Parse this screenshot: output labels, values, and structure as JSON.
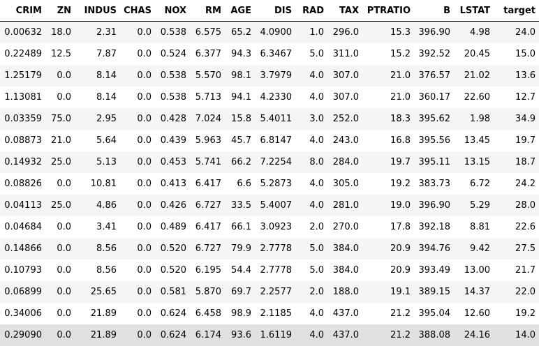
{
  "table": {
    "columns": [
      "CRIM",
      "ZN",
      "INDUS",
      "CHAS",
      "NOX",
      "RM",
      "AGE",
      "DIS",
      "RAD",
      "TAX",
      "PTRATIO",
      "B",
      "LSTAT",
      "target"
    ],
    "rows": [
      [
        "0.00632",
        "18.0",
        "2.31",
        "0.0",
        "0.538",
        "6.575",
        "65.2",
        "4.0900",
        "1.0",
        "296.0",
        "15.3",
        "396.90",
        "4.98",
        "24.0"
      ],
      [
        "0.22489",
        "12.5",
        "7.87",
        "0.0",
        "0.524",
        "6.377",
        "94.3",
        "6.3467",
        "5.0",
        "311.0",
        "15.2",
        "392.52",
        "20.45",
        "15.0"
      ],
      [
        "1.25179",
        "0.0",
        "8.14",
        "0.0",
        "0.538",
        "5.570",
        "98.1",
        "3.7979",
        "4.0",
        "307.0",
        "21.0",
        "376.57",
        "21.02",
        "13.6"
      ],
      [
        "1.13081",
        "0.0",
        "8.14",
        "0.0",
        "0.538",
        "5.713",
        "94.1",
        "4.2330",
        "4.0",
        "307.0",
        "21.0",
        "360.17",
        "22.60",
        "12.7"
      ],
      [
        "0.03359",
        "75.0",
        "2.95",
        "0.0",
        "0.428",
        "7.024",
        "15.8",
        "5.4011",
        "3.0",
        "252.0",
        "18.3",
        "395.62",
        "1.98",
        "34.9"
      ],
      [
        "0.08873",
        "21.0",
        "5.64",
        "0.0",
        "0.439",
        "5.963",
        "45.7",
        "6.8147",
        "4.0",
        "243.0",
        "16.8",
        "395.56",
        "13.45",
        "19.7"
      ],
      [
        "0.14932",
        "25.0",
        "5.13",
        "0.0",
        "0.453",
        "5.741",
        "66.2",
        "7.2254",
        "8.0",
        "284.0",
        "19.7",
        "395.11",
        "13.15",
        "18.7"
      ],
      [
        "0.08826",
        "0.0",
        "10.81",
        "0.0",
        "0.413",
        "6.417",
        "6.6",
        "5.2873",
        "4.0",
        "305.0",
        "19.2",
        "383.73",
        "6.72",
        "24.2"
      ],
      [
        "0.04113",
        "25.0",
        "4.86",
        "0.0",
        "0.426",
        "6.727",
        "33.5",
        "5.4007",
        "4.0",
        "281.0",
        "19.0",
        "396.90",
        "5.29",
        "28.0"
      ],
      [
        "0.04684",
        "0.0",
        "3.41",
        "0.0",
        "0.489",
        "6.417",
        "66.1",
        "3.0923",
        "2.0",
        "270.0",
        "17.8",
        "392.18",
        "8.81",
        "22.6"
      ],
      [
        "0.14866",
        "0.0",
        "8.56",
        "0.0",
        "0.520",
        "6.727",
        "79.9",
        "2.7778",
        "5.0",
        "384.0",
        "20.9",
        "394.76",
        "9.42",
        "27.5"
      ],
      [
        "0.10793",
        "0.0",
        "8.56",
        "0.0",
        "0.520",
        "6.195",
        "54.4",
        "2.7778",
        "5.0",
        "384.0",
        "20.9",
        "393.49",
        "13.00",
        "21.7"
      ],
      [
        "0.06899",
        "0.0",
        "25.65",
        "0.0",
        "0.581",
        "5.870",
        "69.7",
        "2.2577",
        "2.0",
        "188.0",
        "19.1",
        "389.15",
        "14.37",
        "22.0"
      ],
      [
        "0.34006",
        "0.0",
        "21.89",
        "0.0",
        "0.624",
        "6.458",
        "98.9",
        "2.1185",
        "4.0",
        "437.0",
        "21.2",
        "395.04",
        "12.60",
        "19.2"
      ],
      [
        "0.29090",
        "0.0",
        "21.89",
        "0.0",
        "0.624",
        "6.174",
        "93.6",
        "1.6119",
        "4.0",
        "437.0",
        "21.2",
        "388.08",
        "24.16",
        "14.0"
      ]
    ],
    "hovered_row_index": 14,
    "colors": {
      "stripe": "#f5f5f5",
      "background": "#ffffff",
      "hover": "#e0e0e0",
      "header_border": "#000000"
    }
  }
}
